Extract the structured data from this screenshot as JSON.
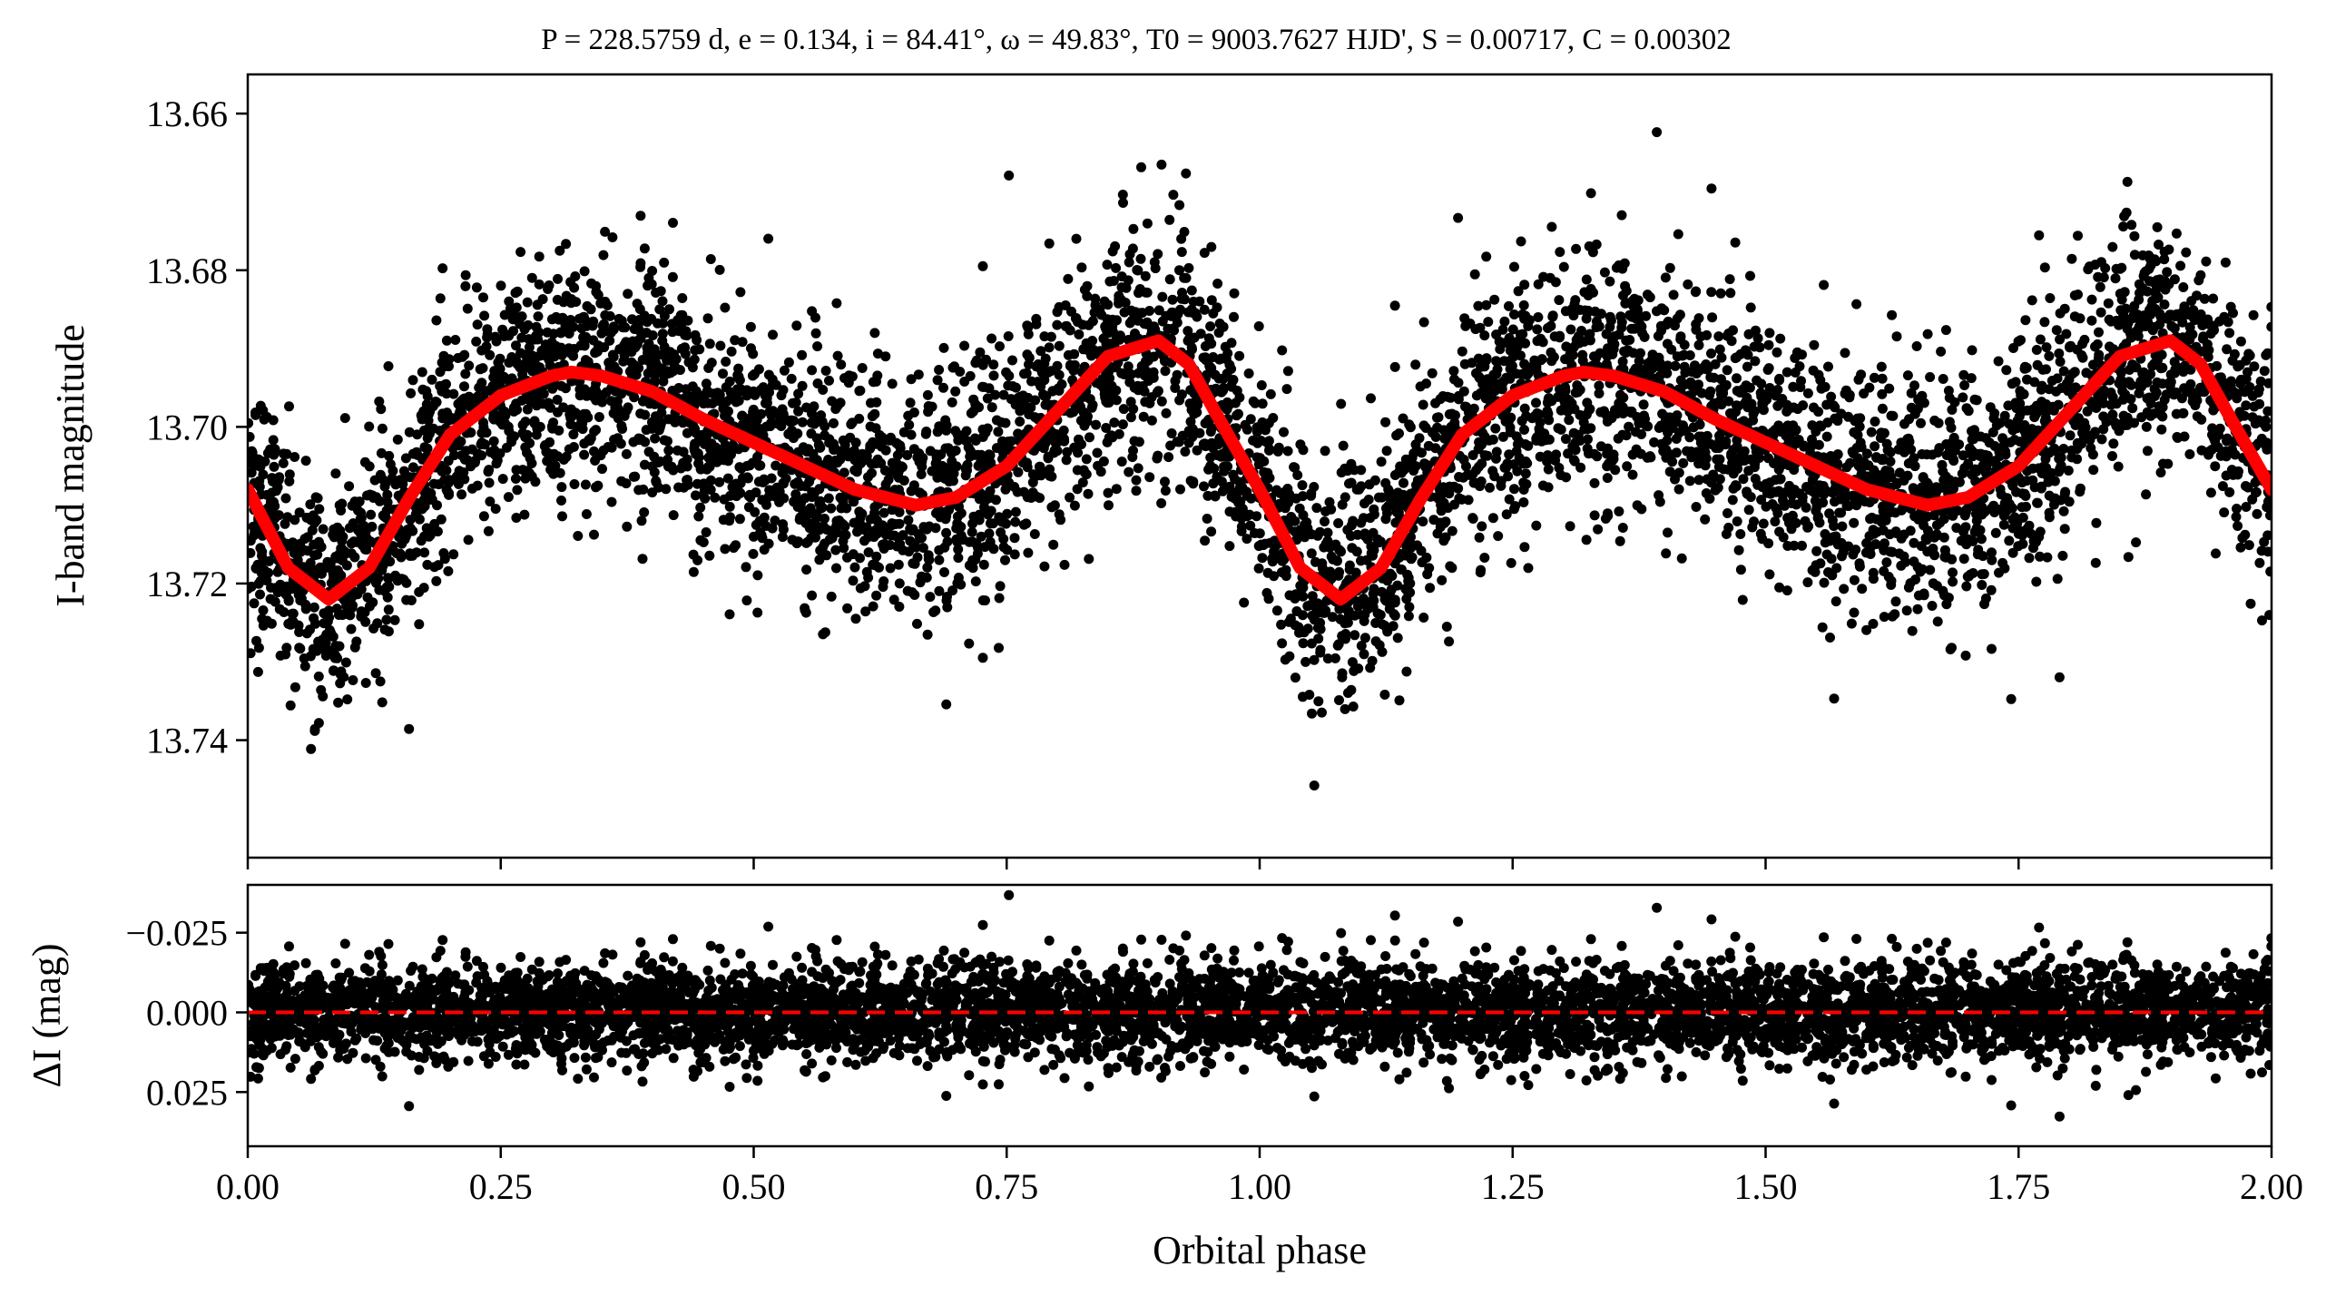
{
  "chart_data": [
    {
      "type": "scatter",
      "title": "P = 228.5759 d, e = 0.134, i = 84.41°, ω = 49.83°, T0 = 9003.7627 HJD', S = 0.00717, C = 0.00302",
      "xlabel": "",
      "ylabel": "I-band magnitude",
      "xlim": [
        0.0,
        2.0
      ],
      "ylim": [
        13.755,
        13.655
      ],
      "y_inverted": true,
      "yticks": [
        "13.66",
        "13.68",
        "13.70",
        "13.72",
        "13.74"
      ],
      "grid": false,
      "series": [
        {
          "kind": "points",
          "color": "#000000",
          "point_count_estimate": 6000,
          "scatter_sigma_mag": 0.0075
        },
        {
          "kind": "model-curve",
          "color": "#ff0000",
          "x": [
            0.0,
            0.04,
            0.08,
            0.12,
            0.16,
            0.2,
            0.25,
            0.3,
            0.32,
            0.35,
            0.4,
            0.45,
            0.5,
            0.55,
            0.6,
            0.66,
            0.7,
            0.75,
            0.8,
            0.85,
            0.9,
            0.93,
            0.96,
            1.0,
            1.04,
            1.08,
            1.12,
            1.16,
            1.2,
            1.25,
            1.3,
            1.32,
            1.35,
            1.4,
            1.45,
            1.5,
            1.55,
            1.6,
            1.66,
            1.7,
            1.75,
            1.8,
            1.85,
            1.9,
            1.93,
            1.96,
            2.0
          ],
          "y": [
            13.708,
            13.718,
            13.722,
            13.718,
            13.709,
            13.701,
            13.696,
            13.6935,
            13.693,
            13.6935,
            13.6955,
            13.699,
            13.702,
            13.705,
            13.708,
            13.71,
            13.709,
            13.705,
            13.698,
            13.691,
            13.689,
            13.692,
            13.699,
            13.708,
            13.718,
            13.722,
            13.718,
            13.709,
            13.701,
            13.696,
            13.6935,
            13.693,
            13.6935,
            13.6955,
            13.699,
            13.702,
            13.705,
            13.708,
            13.71,
            13.709,
            13.705,
            13.698,
            13.691,
            13.689,
            13.692,
            13.699,
            13.708
          ]
        }
      ]
    },
    {
      "type": "scatter",
      "title": "",
      "xlabel": "Orbital phase",
      "ylabel": "ΔI (mag)",
      "xlim": [
        0.0,
        2.0
      ],
      "ylim": [
        0.042,
        -0.04
      ],
      "y_inverted": true,
      "xticks": [
        "0.00",
        "0.25",
        "0.50",
        "0.75",
        "1.00",
        "1.25",
        "1.50",
        "1.75",
        "2.00"
      ],
      "yticks": [
        "−0.025",
        "0.000",
        "0.025"
      ],
      "grid": false,
      "reference_line": {
        "y": 0.0,
        "style": "dashed",
        "color": "#ff0000"
      },
      "series": [
        {
          "kind": "residuals",
          "color": "#000000",
          "point_count_estimate": 6000,
          "scatter_sigma_mag": 0.0075
        }
      ]
    }
  ]
}
